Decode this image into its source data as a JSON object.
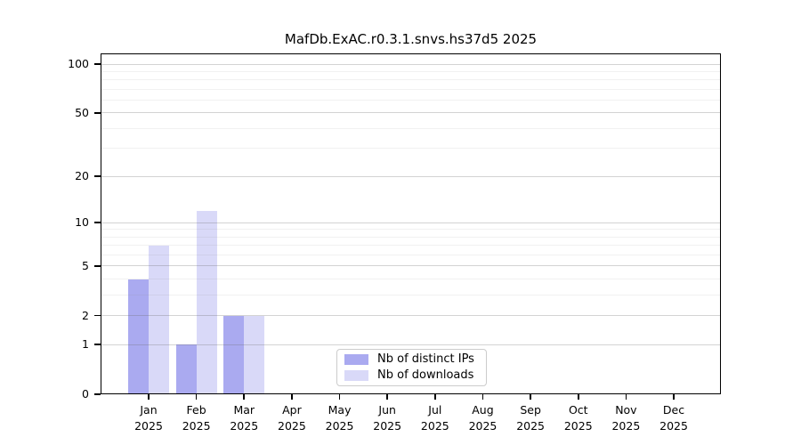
{
  "title": "MafDb.ExAC.r0.3.1.snvs.hs37d5 2025",
  "legend": {
    "entries": [
      {
        "label": "Nb of distinct IPs"
      },
      {
        "label": "Nb of downloads"
      }
    ]
  },
  "chart_data": {
    "type": "bar",
    "title": "MafDb.ExAC.r0.3.1.snvs.hs37d5 2025",
    "categories": [
      "Jan",
      "Feb",
      "Mar",
      "Apr",
      "May",
      "Jun",
      "Jul",
      "Aug",
      "Sep",
      "Oct",
      "Nov",
      "Dec"
    ],
    "category_year": "2025",
    "series": [
      {
        "name": "Nb of distinct IPs",
        "color": "#aaaaf0",
        "values": [
          4,
          1,
          2,
          0,
          0,
          0,
          0,
          0,
          0,
          0,
          0,
          0
        ]
      },
      {
        "name": "Nb of downloads",
        "color": "#d9d9f8",
        "values": [
          7,
          12,
          2,
          0,
          0,
          0,
          0,
          0,
          0,
          0,
          0,
          0
        ]
      }
    ],
    "xlabel": "",
    "ylabel": "",
    "yscale": "log1p",
    "y_major_ticks": [
      0,
      1,
      2,
      5,
      10,
      20,
      50,
      100
    ],
    "y_minor_gridlines": [
      3,
      4,
      6,
      7,
      8,
      9,
      30,
      40,
      60,
      70,
      80,
      90
    ],
    "ylim": [
      0,
      116
    ],
    "grid": true,
    "legend_position": "lower center",
    "background_color": "#ffffff",
    "axis_color": "#000000"
  }
}
